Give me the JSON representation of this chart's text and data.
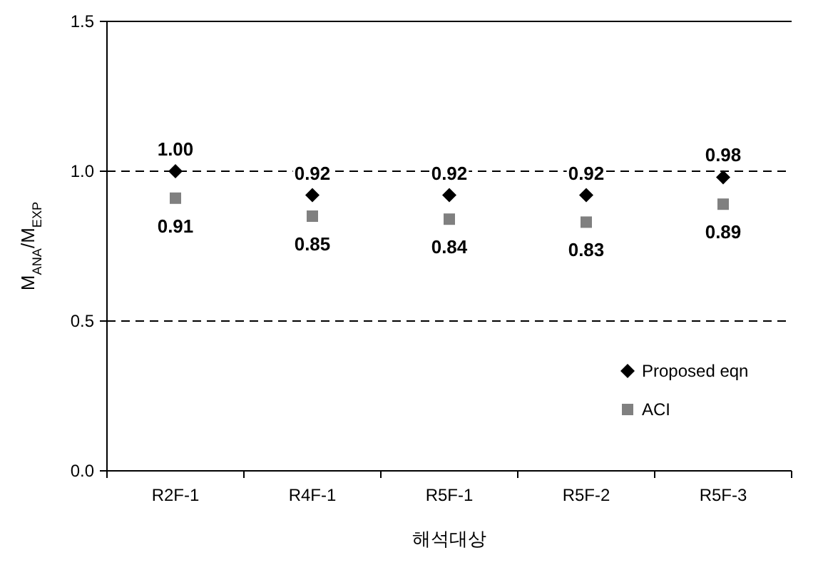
{
  "chart_data": {
    "type": "scatter",
    "xlabel": "해석대상",
    "ylabel": "M$_{ANA}$/M$_{EXP}$",
    "categories": [
      "R2F-1",
      "R4F-1",
      "R5F-1",
      "R5F-2",
      "R5F-3"
    ],
    "series": [
      {
        "name": "Proposed eqn",
        "color": "#000000",
        "marker": "diamond",
        "values": [
          1.0,
          0.92,
          0.92,
          0.92,
          0.98
        ],
        "value_labels": [
          "1.00",
          "0.92",
          "0.92",
          "0.92",
          "0.98"
        ]
      },
      {
        "name": "ACI",
        "color": "#808080",
        "marker": "square",
        "values": [
          0.91,
          0.85,
          0.84,
          0.83,
          0.89
        ],
        "value_labels": [
          "0.91",
          "0.85",
          "0.84",
          "0.83",
          "0.89"
        ]
      }
    ],
    "ylim": [
      0,
      1.5
    ],
    "yticks": [
      {
        "value": 0,
        "label": "0.0"
      },
      {
        "value": 0.5,
        "label": "0.5"
      },
      {
        "value": 1,
        "label": "1.0"
      },
      {
        "value": 1.5,
        "label": "1.5"
      }
    ],
    "grid": "y",
    "line_style": "dashed",
    "legend": "bottom right"
  }
}
